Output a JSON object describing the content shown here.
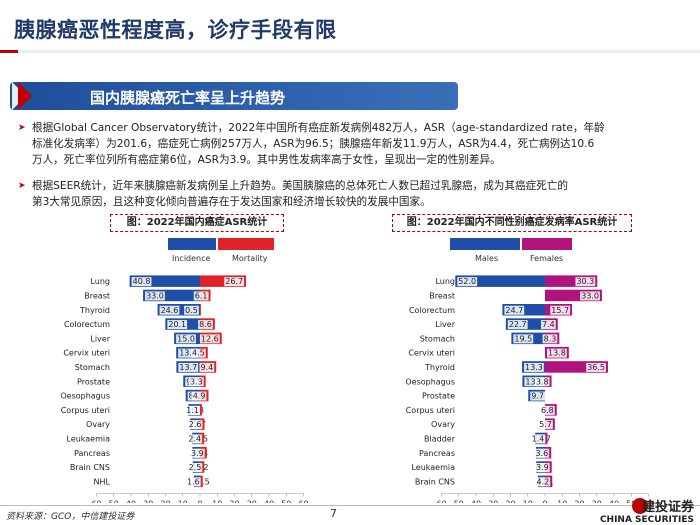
{
  "header": {
    "title": "胰腺癌恶性程度高，诊疗手段有限"
  },
  "section": {
    "title": "国内胰腺癌死亡率呈上升趋势"
  },
  "bullets": [
    {
      "line1": "根据Global Cancer Observatory统计，2022年中国所有癌症新发病例482万人，ASR（age-standardized rate，年龄",
      "line2": "标准化发病率）为201.6，癌症死亡病例257万人，ASR为96.5；胰腺癌年新发11.9万人，ASR为4.4，死亡病例达10.6",
      "line3": "万人，死亡率位列所有癌症第6位，ASR为3.9。其中男性发病率高于女性，呈现出一定的性别差异。"
    },
    {
      "line1": "根据SEER统计，近年来胰腺癌新发病例呈上升趋势。美国胰腺癌的总体死亡人数已超过乳腺癌，成为其癌症死亡的",
      "line2": "第3大常见原因，且这种变化倾向普遍存在于发达国家和经济增长较快的发展中国家。"
    }
  ],
  "footer": {
    "source": "资料来源：GCO，中信建投证券",
    "page": "7",
    "brand_cn": "建投证券",
    "brand_en": "CHINA SECURITIES"
  },
  "colors": {
    "incidence": "#1f4fa8",
    "mortality": "#e0232a",
    "males": "#1f4fa8",
    "females": "#b0127e"
  },
  "chart_data": [
    {
      "type": "bar",
      "title": "图：2022年国内癌症ASR统计",
      "legend": [
        "Incidence",
        "Mortality"
      ],
      "categories": [
        "Lung",
        "Breast",
        "Thyroid",
        "Colorectum",
        "Liver",
        "Cervix uteri",
        "Stomach",
        "Prostate",
        "Oesophagus",
        "Corpus uteri",
        "Ovary",
        "Leukaemia",
        "Pancreas",
        "Brain CNS",
        "NHL"
      ],
      "series": [
        {
          "name": "Incidence",
          "values": [
            40.8,
            33.0,
            24.6,
            20.1,
            15.0,
            13.8,
            13.7,
            9.7,
            8.3,
            6.8,
            5.7,
            4.5,
            4.4,
            4.2,
            3.5
          ]
        },
        {
          "name": "Mortality",
          "values": [
            26.7,
            6.1,
            0.5,
            8.6,
            12.6,
            4.5,
            9.4,
            3.3,
            4.9,
            1.1,
            2.6,
            2.4,
            3.9,
            2.5,
            1.6
          ]
        }
      ],
      "xticks": [
        "60",
        "50",
        "40",
        "30",
        "20",
        "10",
        "0",
        "10",
        "20",
        "30",
        "40",
        "50",
        "60"
      ],
      "xlim": [
        -60,
        60
      ]
    },
    {
      "type": "bar",
      "title": "图：2022年国内不同性别癌症发病率ASR统计",
      "legend": [
        "Males",
        "Females"
      ],
      "categories": [
        "Lung",
        "Breast",
        "Colorectum",
        "Liver",
        "Stomach",
        "Cervix uteri",
        "Thyroid",
        "Oesophagus",
        "Prostate",
        "Corpus uteri",
        "Ovary",
        "Bladder",
        "Pancreas",
        "Leukaemia",
        "Brain CNS"
      ],
      "series": [
        {
          "name": "Males",
          "values": [
            52.0,
            null,
            24.7,
            22.7,
            19.5,
            null,
            13.3,
            13.1,
            9.7,
            null,
            null,
            5.7,
            5.3,
            5.1,
            4.1
          ]
        },
        {
          "name": "Females",
          "values": [
            30.3,
            33.0,
            15.7,
            7.4,
            8.3,
            13.8,
            36.5,
            3.8,
            null,
            6.8,
            5.7,
            1.4,
            3.6,
            3.9,
            4.2
          ]
        }
      ],
      "xticks": [
        "60",
        "50",
        "40",
        "30",
        "20",
        "10",
        "0",
        "10",
        "20",
        "30",
        "40",
        "50",
        "60"
      ],
      "xlim": [
        -60,
        60
      ]
    }
  ]
}
